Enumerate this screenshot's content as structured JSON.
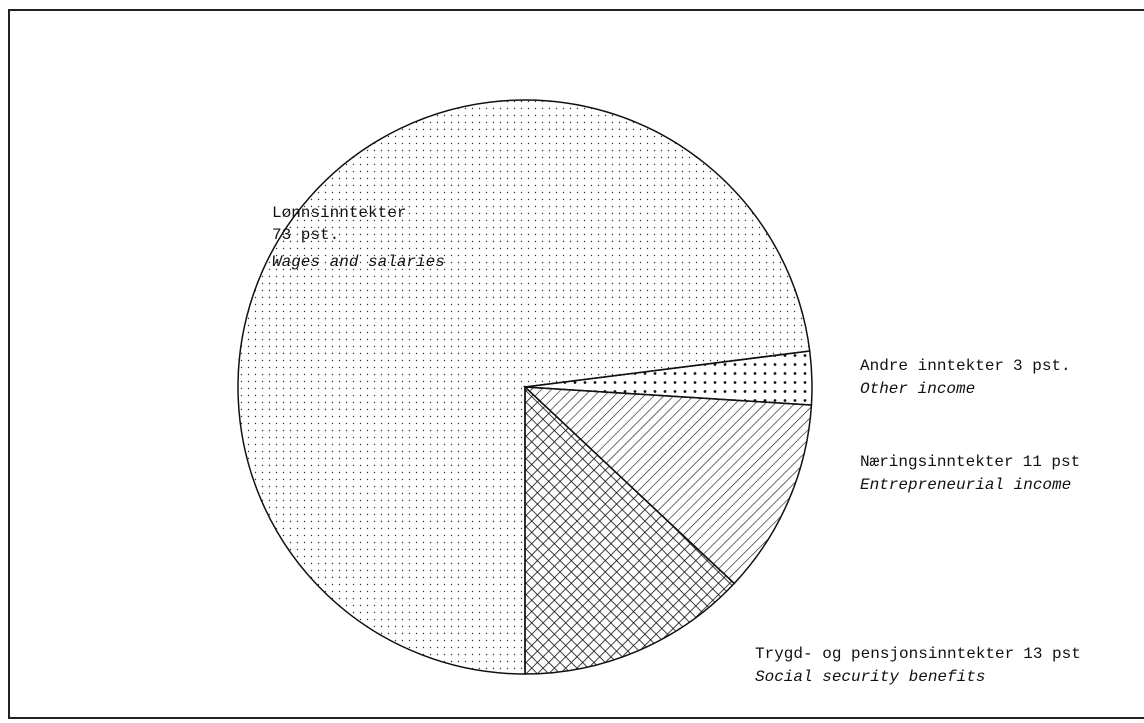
{
  "chart_data": {
    "type": "pie",
    "categories": [
      "Trygd- og pensjonsinntekter",
      "Næringsinntekter",
      "Andre inntekter",
      "Lønnsinntekter"
    ],
    "values": [
      13,
      11,
      3,
      73
    ],
    "value_labels": [
      "13 pst",
      "11 pst",
      "3 pst.",
      "73 pst."
    ],
    "english_labels": [
      "Social security benefits",
      "Entrepreneurial income",
      "Other income",
      "Wages and salaries"
    ],
    "patterns": [
      "crosshatch",
      "hatch",
      "dots-coarse",
      "dots-fine"
    ],
    "color": "#111111"
  }
}
